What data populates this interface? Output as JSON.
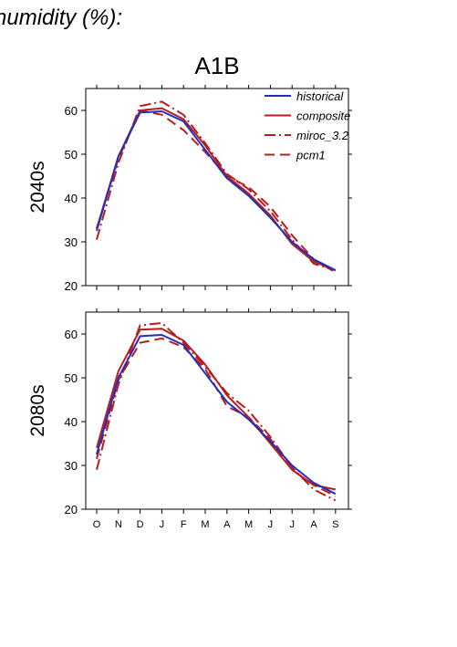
{
  "page": {
    "heading": "humidity (%):"
  },
  "chart_data": {
    "type": "line",
    "title": "A1B",
    "categories": [
      "O",
      "N",
      "D",
      "J",
      "F",
      "M",
      "A",
      "M",
      "J",
      "J",
      "A",
      "S"
    ],
    "ylim": [
      20,
      65
    ],
    "yticks": [
      20,
      30,
      40,
      50,
      60
    ],
    "legend": {
      "placement": "top-right",
      "entries": [
        {
          "label": "historical",
          "color": "#1f2fbf",
          "dash": "solid"
        },
        {
          "label": "composite",
          "color": "#b81c1c",
          "dash": "solid"
        },
        {
          "label": "miroc_3.2",
          "color": "#b81c1c",
          "dash": "dash-dot"
        },
        {
          "label": "pcm1",
          "color": "#b81c1c",
          "dash": "long-dash"
        }
      ]
    },
    "panels": [
      {
        "row_label": "2040s",
        "series": [
          {
            "name": "historical",
            "values": [
              32.5,
              49.5,
              59.5,
              59.8,
              57.5,
              51.0,
              44.5,
              40.5,
              35.5,
              30.0,
              26.0,
              23.5
            ]
          },
          {
            "name": "composite",
            "values": [
              33.0,
              49.5,
              60.0,
              60.5,
              58.0,
              52.0,
              45.0,
              41.0,
              36.0,
              29.5,
              25.5,
              23.5
            ]
          },
          {
            "name": "miroc_3.2",
            "values": [
              30.5,
              48.0,
              61.0,
              62.0,
              59.0,
              52.5,
              45.5,
              42.0,
              37.0,
              30.5,
              25.0,
              23.5
            ]
          },
          {
            "name": "pcm1",
            "values": [
              33.0,
              49.0,
              60.0,
              59.0,
              55.5,
              50.5,
              45.0,
              42.5,
              38.0,
              31.5,
              26.0,
              23.0
            ]
          }
        ]
      },
      {
        "row_label": "2080s",
        "series": [
          {
            "name": "historical",
            "values": [
              32.5,
              50.0,
              59.5,
              59.8,
              57.5,
              51.0,
              44.5,
              40.5,
              35.5,
              30.0,
              26.0,
              23.5
            ]
          },
          {
            "name": "composite",
            "values": [
              34.0,
              51.5,
              61.0,
              61.2,
              58.5,
              53.0,
              46.0,
              41.0,
              35.0,
              29.0,
              25.5,
              24.5
            ]
          },
          {
            "name": "miroc_3.2",
            "values": [
              29.0,
              48.5,
              62.0,
              62.5,
              58.0,
              52.5,
              46.5,
              42.5,
              36.5,
              29.5,
              24.5,
              22.0
            ]
          },
          {
            "name": "pcm1",
            "values": [
              31.5,
              49.5,
              58.0,
              59.0,
              57.0,
              52.0,
              43.5,
              41.0,
              36.0,
              29.0,
              25.5,
              23.0
            ]
          }
        ]
      }
    ]
  }
}
